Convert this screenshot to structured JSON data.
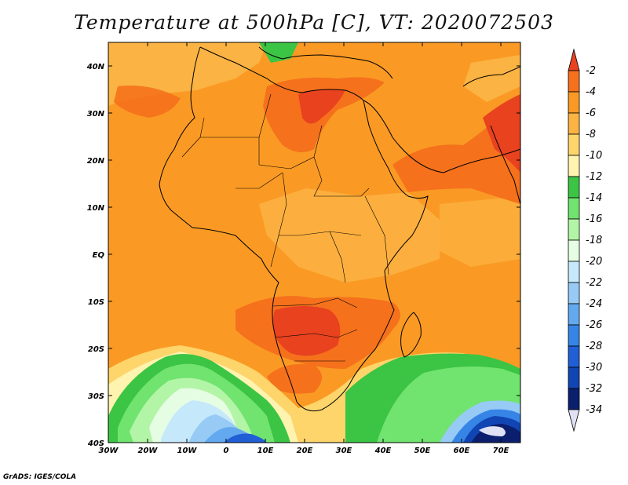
{
  "title": "Temperature at 500hPa [C], VT: 2020072503",
  "credit": "GrADS: IGES/COLA",
  "map": {
    "lat_labels": [
      "40N",
      "30N",
      "20N",
      "10N",
      "EQ",
      "10S",
      "20S",
      "30S",
      "40S"
    ],
    "lon_labels": [
      "30W",
      "20W",
      "10W",
      "0",
      "10E",
      "20E",
      "30E",
      "40E",
      "50E",
      "60E",
      "70E"
    ]
  },
  "colorbar": {
    "labels": [
      "-2",
      "-4",
      "-6",
      "-8",
      "-10",
      "-12",
      "-14",
      "-16",
      "-18",
      "-20",
      "-22",
      "-24",
      "-26",
      "-28",
      "-30",
      "-32",
      "-34"
    ],
    "colors_top_to_bottom": [
      "#e8421f",
      "#f5711c",
      "#fa9a24",
      "#fbb343",
      "#fdd56b",
      "#fff3b0",
      "#3cc444",
      "#71e36f",
      "#b2f5a6",
      "#e5fde2",
      "#c6e8fb",
      "#97cbf5",
      "#63a9ef",
      "#3685e6",
      "#205fd6",
      "#1245b4",
      "#0b1f6e",
      "#e1e1f5"
    ]
  }
}
